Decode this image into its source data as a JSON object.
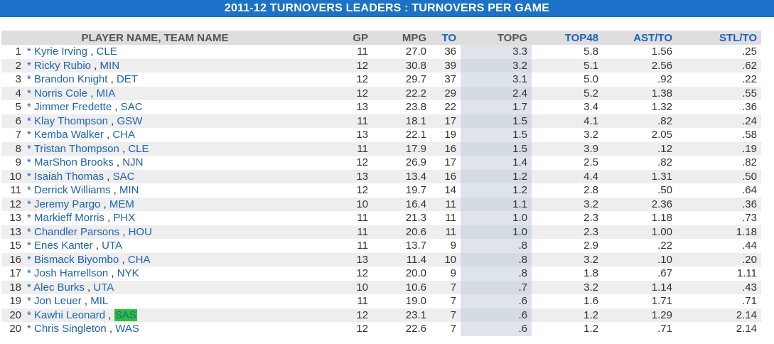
{
  "title": "2011-12 TURNOVERS LEADERS :  TURNOVERS PER GAME",
  "columns": {
    "player": "PLAYER NAME, TEAM NAME",
    "gp": "GP",
    "mpg": "MPG",
    "to": "TO",
    "topg": "TOPG",
    "top48": "TOP48",
    "astto": "AST/TO",
    "stlto": "STL/TO"
  },
  "highlight_color": "#2ec22e",
  "header_link_color": "#1a63b8",
  "title_bar_color": "#1b72c8",
  "rows": [
    {
      "rank": "1",
      "name": "* Kyrie Irving",
      "team": "CLE",
      "gp": "11",
      "mpg": "27.0",
      "to": "36",
      "topg": "3.3",
      "top48": "5.8",
      "astto": "1.56",
      "stlto": ".25"
    },
    {
      "rank": "2",
      "name": "* Ricky Rubio",
      "team": "MIN",
      "gp": "12",
      "mpg": "30.8",
      "to": "39",
      "topg": "3.2",
      "top48": "5.1",
      "astto": "2.56",
      "stlto": ".62"
    },
    {
      "rank": "3",
      "name": "* Brandon Knight",
      "team": "DET",
      "gp": "12",
      "mpg": "29.7",
      "to": "37",
      "topg": "3.1",
      "top48": "5.0",
      "astto": ".92",
      "stlto": ".22"
    },
    {
      "rank": "4",
      "name": "* Norris Cole",
      "team": "MIA",
      "gp": "12",
      "mpg": "22.2",
      "to": "29",
      "topg": "2.4",
      "top48": "5.2",
      "astto": "1.38",
      "stlto": ".55"
    },
    {
      "rank": "5",
      "name": "* Jimmer Fredette",
      "team": "SAC",
      "gp": "13",
      "mpg": "23.8",
      "to": "22",
      "topg": "1.7",
      "top48": "3.4",
      "astto": "1.32",
      "stlto": ".36"
    },
    {
      "rank": "6",
      "name": "* Klay Thompson",
      "team": "GSW",
      "gp": "11",
      "mpg": "18.1",
      "to": "17",
      "topg": "1.5",
      "top48": "4.1",
      "astto": ".82",
      "stlto": ".24"
    },
    {
      "rank": "7",
      "name": "* Kemba Walker",
      "team": "CHA",
      "gp": "13",
      "mpg": "22.1",
      "to": "19",
      "topg": "1.5",
      "top48": "3.2",
      "astto": "2.05",
      "stlto": ".58"
    },
    {
      "rank": "8",
      "name": "* Tristan Thompson",
      "team": "CLE",
      "gp": "11",
      "mpg": "17.9",
      "to": "16",
      "topg": "1.5",
      "top48": "3.9",
      "astto": ".12",
      "stlto": ".19"
    },
    {
      "rank": "9",
      "name": "* MarShon Brooks",
      "team": "NJN",
      "gp": "12",
      "mpg": "26.9",
      "to": "17",
      "topg": "1.4",
      "top48": "2.5",
      "astto": ".82",
      "stlto": ".82"
    },
    {
      "rank": "10",
      "name": "* Isaiah Thomas",
      "team": "SAC",
      "gp": "13",
      "mpg": "13.4",
      "to": "16",
      "topg": "1.2",
      "top48": "4.4",
      "astto": "1.31",
      "stlto": ".50"
    },
    {
      "rank": "11",
      "name": "* Derrick Williams",
      "team": "MIN",
      "gp": "12",
      "mpg": "19.7",
      "to": "14",
      "topg": "1.2",
      "top48": "2.8",
      "astto": ".50",
      "stlto": ".64"
    },
    {
      "rank": "12",
      "name": "* Jeremy Pargo",
      "team": "MEM",
      "gp": "10",
      "mpg": "16.4",
      "to": "11",
      "topg": "1.1",
      "top48": "3.2",
      "astto": "2.36",
      "stlto": ".36"
    },
    {
      "rank": "13",
      "name": "* Markieff Morris",
      "team": "PHX",
      "gp": "11",
      "mpg": "21.3",
      "to": "11",
      "topg": "1.0",
      "top48": "2.3",
      "astto": "1.18",
      "stlto": ".73"
    },
    {
      "rank": "13",
      "name": "* Chandler Parsons",
      "team": "HOU",
      "gp": "11",
      "mpg": "20.6",
      "to": "11",
      "topg": "1.0",
      "top48": "2.3",
      "astto": "1.00",
      "stlto": "1.18"
    },
    {
      "rank": "15",
      "name": "* Enes Kanter",
      "team": "UTA",
      "gp": "11",
      "mpg": "13.7",
      "to": "9",
      "topg": ".8",
      "top48": "2.9",
      "astto": ".22",
      "stlto": ".44"
    },
    {
      "rank": "16",
      "name": "* Bismack Biyombo",
      "team": "CHA",
      "gp": "13",
      "mpg": "11.4",
      "to": "10",
      "topg": ".8",
      "top48": "3.2",
      "astto": ".10",
      "stlto": ".20"
    },
    {
      "rank": "17",
      "name": "* Josh Harrellson",
      "team": "NYK",
      "gp": "12",
      "mpg": "20.0",
      "to": "9",
      "topg": ".8",
      "top48": "1.8",
      "astto": ".67",
      "stlto": "1.11"
    },
    {
      "rank": "18",
      "name": "* Alec Burks",
      "team": "UTA",
      "gp": "10",
      "mpg": "10.6",
      "to": "7",
      "topg": ".7",
      "top48": "3.2",
      "astto": "1.14",
      "stlto": ".43"
    },
    {
      "rank": "19",
      "name": "* Jon Leuer",
      "team": "MIL",
      "gp": "11",
      "mpg": "19.0",
      "to": "7",
      "topg": ".6",
      "top48": "1.6",
      "astto": "1.71",
      "stlto": ".71"
    },
    {
      "rank": "20",
      "name": "* Kawhi Leonard",
      "team": "SAS",
      "highlight": true,
      "gp": "12",
      "mpg": "23.1",
      "to": "7",
      "topg": ".6",
      "top48": "1.2",
      "astto": "1.29",
      "stlto": "2.14"
    },
    {
      "rank": "20",
      "name": "* Chris Singleton",
      "team": "WAS",
      "gp": "12",
      "mpg": "22.6",
      "to": "7",
      "topg": ".6",
      "top48": "1.2",
      "astto": ".71",
      "stlto": "2.14"
    }
  ]
}
